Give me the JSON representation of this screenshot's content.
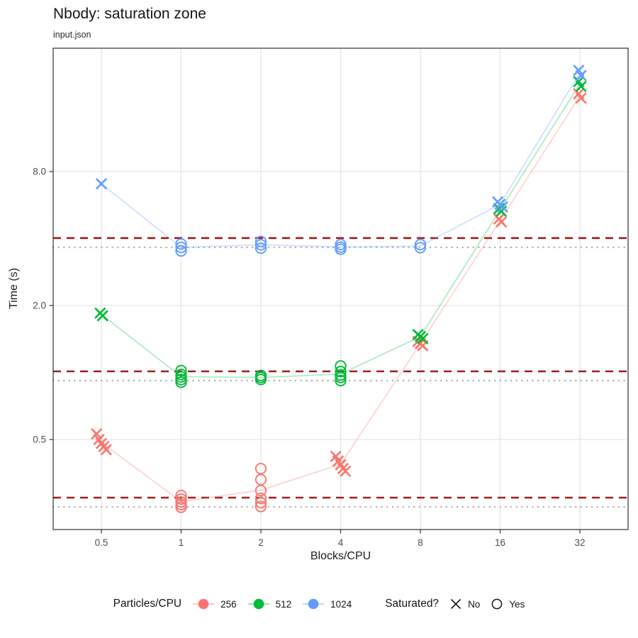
{
  "chart_data": {
    "type": "scatter",
    "title": "Nbody: saturation zone",
    "subtitle": "input.json",
    "xlabel": "Blocks/CPU",
    "ylabel": "Time (s)",
    "log_x": true,
    "log_y": true,
    "grid": true,
    "legend_position": "bottom",
    "xlim": [
      0.33,
      48
    ],
    "ylim": [
      0.2,
      28.5
    ],
    "x_ticks": [
      {
        "v": 0.5,
        "label": "0.5"
      },
      {
        "v": 1,
        "label": "1"
      },
      {
        "v": 2,
        "label": "2"
      },
      {
        "v": 4,
        "label": "4"
      },
      {
        "v": 8,
        "label": "8"
      },
      {
        "v": 16,
        "label": "16"
      },
      {
        "v": 32,
        "label": "32"
      }
    ],
    "y_ticks": [
      {
        "v": 0.5,
        "label": "0.5"
      },
      {
        "v": 2,
        "label": "2.0"
      },
      {
        "v": 8,
        "label": "8.0"
      }
    ],
    "series": [
      {
        "name": "256",
        "color": "#F8766D",
        "best_time": 0.249,
        "saturation_threshold": 0.274,
        "points": [
          {
            "x": 0.5,
            "saturated": false,
            "times": [
              0.53,
              0.5,
              0.48,
              0.465,
              0.45
            ]
          },
          {
            "x": 1,
            "saturated": true,
            "times": [
              0.28,
              0.27,
              0.262,
              0.255,
              0.248
            ]
          },
          {
            "x": 2,
            "saturated": true,
            "times": [
              0.37,
              0.33,
              0.295,
              0.272,
              0.26,
              0.25
            ]
          },
          {
            "x": 4,
            "saturated": false,
            "times": [
              0.42,
              0.4,
              0.385,
              0.37,
              0.36
            ]
          },
          {
            "x": 8,
            "saturated": false,
            "times": [
              1.38,
              1.35,
              1.32
            ]
          },
          {
            "x": 16,
            "saturated": false,
            "times": [
              4.9,
              4.75
            ]
          },
          {
            "x": 32,
            "saturated": false,
            "times": [
              17.9,
              17.1
            ]
          }
        ]
      },
      {
        "name": "512",
        "color": "#00BA38",
        "best_time": 0.92,
        "saturation_threshold": 1.012,
        "points": [
          {
            "x": 0.5,
            "saturated": false,
            "times": [
              1.85,
              1.8
            ]
          },
          {
            "x": 1,
            "saturated": true,
            "times": [
              1.02,
              0.98,
              0.955,
              0.93,
              0.905
            ]
          },
          {
            "x": 2,
            "saturated": true,
            "times": [
              0.97,
              0.95,
              0.93
            ]
          },
          {
            "x": 4,
            "saturated": true,
            "times": [
              1.07,
              1.01,
              0.975,
              0.95,
              0.92
            ]
          },
          {
            "x": 8,
            "saturated": false,
            "times": [
              1.48,
              1.45,
              1.42
            ]
          },
          {
            "x": 16,
            "saturated": false,
            "times": [
              5.45,
              5.3
            ]
          },
          {
            "x": 32,
            "saturated": false,
            "times": [
              20.3,
              19.3
            ]
          }
        ]
      },
      {
        "name": "1024",
        "color": "#619CFF",
        "best_time": 3.65,
        "saturation_threshold": 4.02,
        "points": [
          {
            "x": 0.5,
            "saturated": false,
            "times": [
              7.05
            ]
          },
          {
            "x": 1,
            "saturated": true,
            "times": [
              3.78,
              3.65,
              3.52
            ]
          },
          {
            "x": 2,
            "saturated": true,
            "times": [
              3.88,
              3.75,
              3.62
            ]
          },
          {
            "x": 4,
            "saturated": true,
            "times": [
              3.76,
              3.66,
              3.58
            ]
          },
          {
            "x": 8,
            "saturated": true,
            "times": [
              3.76,
              3.64
            ]
          },
          {
            "x": 16,
            "saturated": false,
            "times": [
              5.85,
              5.7,
              5.55
            ]
          },
          {
            "x": 32,
            "saturated": false,
            "times": [
              22.8,
              21.6
            ]
          }
        ]
      }
    ],
    "reference_lines": {
      "dashed": {
        "color": "#A31D1D",
        "values": [
          0.274,
          1.012,
          4.02
        ]
      },
      "dotted": {
        "color": "#ADADAD",
        "values": [
          0.249,
          0.92,
          3.65
        ]
      }
    }
  },
  "legend": {
    "particles": {
      "label": "Particles/CPU",
      "items": [
        {
          "label": "256",
          "color": "#F8766D"
        },
        {
          "label": "512",
          "color": "#00BA38"
        },
        {
          "label": "1024",
          "color": "#619CFF"
        }
      ]
    },
    "saturated": {
      "label": "Saturated?",
      "no_label": "No",
      "yes_label": "Yes"
    }
  },
  "style": {
    "grid_color": "#E5E5E5",
    "panel_border_color": "#2F2F2F",
    "tick_label_color": "#4D4D4D",
    "legend_glyph_color": "#1A1A1A"
  }
}
